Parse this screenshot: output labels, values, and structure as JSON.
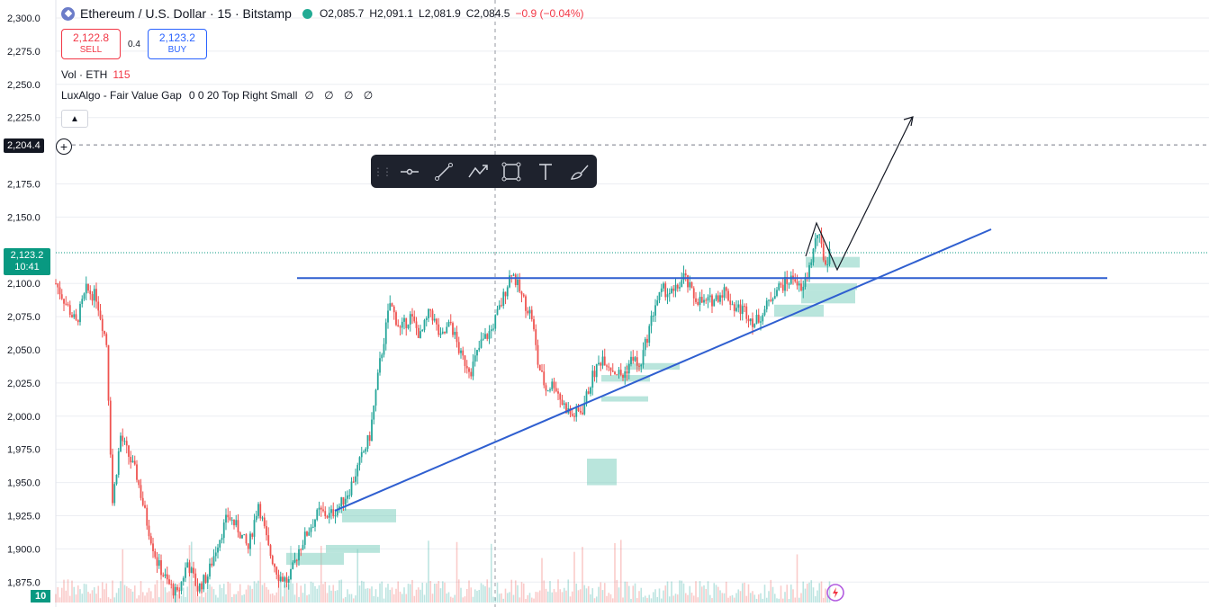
{
  "header": {
    "symbol": "Ethereum / U.S. Dollar · 15 · Bitstamp",
    "open": "O2,085.7",
    "high": "H2,091.1",
    "low": "L2,081.9",
    "close": "C2,084.5",
    "change": "−0.9 (−0.04%)"
  },
  "trade": {
    "sell_price": "2,122.8",
    "sell_label": "SELL",
    "spread": "0.4",
    "buy_price": "2,123.2",
    "buy_label": "BUY"
  },
  "volume_legend": {
    "label": "Vol · ETH",
    "value": "115"
  },
  "indicator": {
    "label": "LuxAlgo - Fair Value Gap",
    "params": "0 0 20 Top Right Small",
    "values": "∅ ∅ ∅ ∅"
  },
  "price_axis": {
    "ticks": [
      "2,300.0",
      "2,275.0",
      "2,250.0",
      "2,225.0",
      "2,204.4",
      "2,175.0",
      "2,150.0",
      "2,123.2",
      "2,100.0",
      "2,075.0",
      "2,050.0",
      "2,025.0",
      "2,000.0",
      "1,975.0",
      "1,950.0",
      "1,925.0",
      "1,900.0",
      "1,875.0"
    ],
    "crosshair_price": "2,204.4",
    "current_price": "2,123.2",
    "countdown": "10:41",
    "volume_tag": "10"
  },
  "colors": {
    "up": "#26a69a",
    "down": "#ef5350",
    "drawing": "#2f5fd0",
    "fvg": "#7fcfc0"
  },
  "toolbar": {
    "icons": [
      "horizontal-line-icon",
      "trend-line-icon",
      "path-icon",
      "rectangle-icon",
      "text-icon",
      "brush-icon"
    ]
  },
  "chart_data": {
    "type": "candlestick",
    "symbol": "ETHUSD",
    "interval": "15",
    "ylim": [
      1865,
      2310
    ],
    "anchors": [
      [
        0,
        2100
      ],
      [
        5,
        2085
      ],
      [
        10,
        2070
      ],
      [
        15,
        2095
      ],
      [
        20,
        2090
      ],
      [
        25,
        2055
      ],
      [
        28,
        1935
      ],
      [
        32,
        1985
      ],
      [
        36,
        1970
      ],
      [
        40,
        1955
      ],
      [
        45,
        1920
      ],
      [
        50,
        1890
      ],
      [
        55,
        1875
      ],
      [
        60,
        1865
      ],
      [
        65,
        1890
      ],
      [
        70,
        1870
      ],
      [
        75,
        1880
      ],
      [
        80,
        1905
      ],
      [
        85,
        1925
      ],
      [
        90,
        1915
      ],
      [
        95,
        1900
      ],
      [
        100,
        1935
      ],
      [
        105,
        1900
      ],
      [
        110,
        1880
      ],
      [
        115,
        1875
      ],
      [
        120,
        1900
      ],
      [
        125,
        1915
      ],
      [
        130,
        1928
      ],
      [
        135,
        1925
      ],
      [
        140,
        1932
      ],
      [
        145,
        1945
      ],
      [
        150,
        1965
      ],
      [
        155,
        1985
      ],
      [
        160,
        2040
      ],
      [
        165,
        2085
      ],
      [
        170,
        2065
      ],
      [
        175,
        2075
      ],
      [
        180,
        2060
      ],
      [
        185,
        2080
      ],
      [
        190,
        2058
      ],
      [
        195,
        2070
      ],
      [
        200,
        2045
      ],
      [
        205,
        2035
      ],
      [
        210,
        2055
      ],
      [
        215,
        2065
      ],
      [
        220,
        2085
      ],
      [
        225,
        2110
      ],
      [
        230,
        2090
      ],
      [
        235,
        2075
      ],
      [
        238,
        2040
      ],
      [
        242,
        2020
      ],
      [
        246,
        2025
      ],
      [
        250,
        2010
      ],
      [
        255,
        2000
      ],
      [
        260,
        2005
      ],
      [
        265,
        2030
      ],
      [
        270,
        2045
      ],
      [
        275,
        2035
      ],
      [
        280,
        2030
      ],
      [
        285,
        2045
      ],
      [
        288,
        2035
      ],
      [
        292,
        2060
      ],
      [
        296,
        2085
      ],
      [
        300,
        2095
      ],
      [
        305,
        2092
      ],
      [
        310,
        2105
      ],
      [
        315,
        2090
      ],
      [
        320,
        2085
      ],
      [
        325,
        2088
      ],
      [
        330,
        2095
      ],
      [
        335,
        2082
      ],
      [
        340,
        2080
      ],
      [
        345,
        2070
      ],
      [
        350,
        2080
      ],
      [
        355,
        2095
      ],
      [
        360,
        2100
      ],
      [
        365,
        2105
      ],
      [
        368,
        2092
      ],
      [
        372,
        2112
      ],
      [
        376,
        2138
      ],
      [
        380,
        2115
      ],
      [
        382,
        2123
      ]
    ],
    "resistance_level": 2104,
    "fair_value_gaps": [
      [
        2112,
        2120
      ],
      [
        2095,
        2100
      ],
      [
        2085,
        2095
      ],
      [
        2075,
        2084
      ],
      [
        2035,
        2040
      ],
      [
        2026,
        2031
      ],
      [
        2011,
        2015
      ],
      [
        1948,
        1968
      ],
      [
        1920,
        1930
      ],
      [
        1897,
        1903
      ],
      [
        1888,
        1897
      ]
    ]
  }
}
